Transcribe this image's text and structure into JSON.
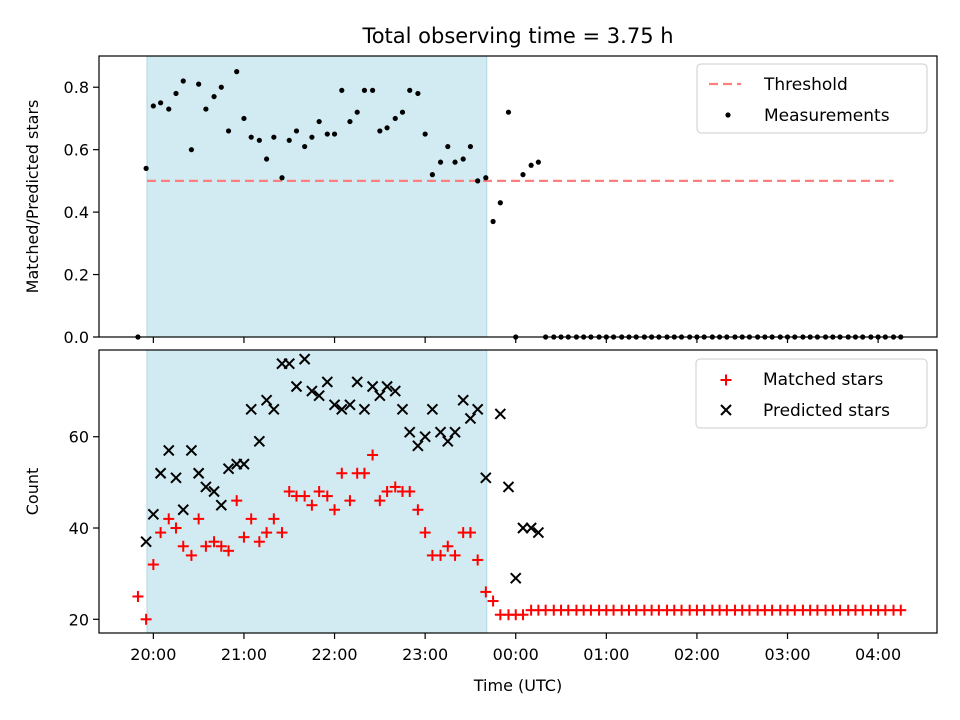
{
  "title": "Total observing time = 3.75 h",
  "xlabel": "Time (UTC)",
  "x_tick_labels": [
    "20:00",
    "21:00",
    "22:00",
    "23:00",
    "00:00",
    "01:00",
    "02:00",
    "03:00",
    "04:00"
  ],
  "colors": {
    "shade": "#add8e6",
    "threshold": "#ff7f7f",
    "measurements": "#000000",
    "matched": "#ff0000",
    "predicted": "#000000"
  },
  "chart_data": [
    {
      "type": "scatter",
      "panel": "top",
      "ylabel": "Matched/Predicted stars",
      "xlim": [
        19.4,
        28.65
      ],
      "ylim": [
        0,
        0.9
      ],
      "y_ticks": [
        0.0,
        0.2,
        0.4,
        0.6,
        0.8
      ],
      "y_tick_labels": [
        "0.0",
        "0.2",
        "0.4",
        "0.6",
        "0.8"
      ],
      "shaded_span": [
        19.93,
        23.68
      ],
      "legend_position": "top-right",
      "legend": [
        "Threshold",
        "Measurements"
      ],
      "threshold": {
        "name": "Threshold",
        "y": 0.5,
        "x_range": [
          19.93,
          28.17
        ],
        "style": "dashed"
      },
      "series": [
        {
          "name": "Measurements",
          "marker": "dot",
          "x": [
            19.83,
            19.92,
            20.0,
            20.08,
            20.17,
            20.25,
            20.33,
            20.42,
            20.5,
            20.58,
            20.67,
            20.75,
            20.83,
            20.92,
            21.0,
            21.08,
            21.17,
            21.25,
            21.33,
            21.42,
            21.5,
            21.58,
            21.67,
            21.75,
            21.83,
            21.92,
            22.0,
            22.08,
            22.17,
            22.25,
            22.33,
            22.42,
            22.5,
            22.58,
            22.67,
            22.75,
            22.83,
            22.92,
            23.0,
            23.08,
            23.17,
            23.25,
            23.33,
            23.42,
            23.5,
            23.58,
            23.67,
            23.75,
            23.83,
            23.92,
            24.0,
            24.08,
            24.17,
            24.25,
            24.33,
            24.42,
            24.5,
            24.58,
            24.67,
            24.75,
            24.83,
            24.92,
            25.0,
            25.08,
            25.17,
            25.25,
            25.33,
            25.42,
            25.5,
            25.58,
            25.67,
            25.75,
            25.83,
            25.92,
            26.0,
            26.08,
            26.17,
            26.25,
            26.33,
            26.42,
            26.5,
            26.58,
            26.67,
            26.75,
            26.83,
            26.92,
            27.0,
            27.08,
            27.17,
            27.25,
            27.33,
            27.42,
            27.5,
            27.58,
            27.67,
            27.75,
            27.83,
            27.92,
            28.0,
            28.08,
            28.17,
            28.25
          ],
          "y": [
            0.0,
            0.54,
            0.74,
            0.75,
            0.73,
            0.78,
            0.82,
            0.6,
            0.81,
            0.73,
            0.77,
            0.8,
            0.66,
            0.85,
            0.7,
            0.64,
            0.63,
            0.57,
            0.64,
            0.51,
            0.63,
            0.66,
            0.61,
            0.64,
            0.69,
            0.65,
            0.65,
            0.79,
            0.69,
            0.72,
            0.79,
            0.79,
            0.66,
            0.67,
            0.7,
            0.72,
            0.79,
            0.78,
            0.65,
            0.52,
            0.56,
            0.61,
            0.56,
            0.57,
            0.61,
            0.5,
            0.51,
            0.37,
            0.43,
            0.72,
            0.0,
            0.52,
            0.55,
            0.56,
            0.0,
            0.0,
            0.0,
            0.0,
            0.0,
            0.0,
            0.0,
            0.0,
            0.0,
            0.0,
            0.0,
            0.0,
            0.0,
            0.0,
            0.0,
            0.0,
            0.0,
            0.0,
            0.0,
            0.0,
            0.0,
            0.0,
            0.0,
            0.0,
            0.0,
            0.0,
            0.0,
            0.0,
            0.0,
            0.0,
            0.0,
            0.0,
            0.0,
            0.0,
            0.0,
            0.0,
            0.0,
            0.0,
            0.0,
            0.0,
            0.0,
            0.0,
            0.0,
            0.0,
            0.0,
            0.0,
            0.0,
            0.0
          ]
        }
      ]
    },
    {
      "type": "scatter",
      "panel": "bottom",
      "ylabel": "Count",
      "xlim": [
        19.4,
        28.65
      ],
      "ylim": [
        17,
        79
      ],
      "y_ticks": [
        20,
        40,
        60
      ],
      "y_tick_labels": [
        "20",
        "40",
        "60"
      ],
      "shaded_span": [
        19.93,
        23.68
      ],
      "legend_position": "top-right",
      "legend": [
        "Matched stars",
        "Predicted stars"
      ],
      "series": [
        {
          "name": "Matched stars",
          "marker": "plus",
          "x": [
            19.83,
            19.92,
            20.0,
            20.08,
            20.17,
            20.25,
            20.33,
            20.42,
            20.5,
            20.58,
            20.67,
            20.75,
            20.83,
            20.92,
            21.0,
            21.08,
            21.17,
            21.25,
            21.33,
            21.42,
            21.5,
            21.58,
            21.67,
            21.75,
            21.83,
            21.92,
            22.0,
            22.08,
            22.17,
            22.25,
            22.33,
            22.42,
            22.5,
            22.58,
            22.67,
            22.75,
            22.83,
            22.92,
            23.0,
            23.08,
            23.17,
            23.25,
            23.33,
            23.42,
            23.5,
            23.58,
            23.67,
            23.75,
            23.83,
            23.92,
            24.0,
            24.08,
            24.17,
            24.25,
            24.33,
            24.42,
            24.5,
            24.58,
            24.67,
            24.75,
            24.83,
            24.92,
            25.0,
            25.08,
            25.17,
            25.25,
            25.33,
            25.42,
            25.5,
            25.58,
            25.67,
            25.75,
            25.83,
            25.92,
            26.0,
            26.08,
            26.17,
            26.25,
            26.33,
            26.42,
            26.5,
            26.58,
            26.67,
            26.75,
            26.83,
            26.92,
            27.0,
            27.08,
            27.17,
            27.25,
            27.33,
            27.42,
            27.5,
            27.58,
            27.67,
            27.75,
            27.83,
            27.92,
            28.0,
            28.08,
            28.17,
            28.25
          ],
          "y": [
            25,
            20,
            32,
            39,
            42,
            40,
            36,
            34,
            42,
            36,
            37,
            36,
            35,
            46,
            38,
            42,
            37,
            39,
            42,
            39,
            48,
            47,
            47,
            45,
            48,
            47,
            44,
            52,
            46,
            52,
            52,
            56,
            46,
            48,
            49,
            48,
            48,
            44,
            39,
            34,
            34,
            36,
            34,
            39,
            39,
            33,
            26,
            24,
            21,
            21,
            21,
            21,
            22,
            22,
            22,
            22,
            22,
            22,
            22,
            22,
            22,
            22,
            22,
            22,
            22,
            22,
            22,
            22,
            22,
            22,
            22,
            22,
            22,
            22,
            22,
            22,
            22,
            22,
            22,
            22,
            22,
            22,
            22,
            22,
            22,
            22,
            22,
            22,
            22,
            22,
            22,
            22,
            22,
            22,
            22,
            22,
            22,
            22,
            22,
            22,
            22,
            22
          ]
        },
        {
          "name": "Predicted stars",
          "marker": "x",
          "x": [
            19.92,
            20.0,
            20.08,
            20.17,
            20.25,
            20.33,
            20.42,
            20.5,
            20.58,
            20.67,
            20.75,
            20.83,
            20.92,
            21.0,
            21.08,
            21.17,
            21.25,
            21.33,
            21.42,
            21.5,
            21.58,
            21.67,
            21.75,
            21.83,
            21.92,
            22.0,
            22.08,
            22.17,
            22.25,
            22.33,
            22.42,
            22.5,
            22.58,
            22.67,
            22.75,
            22.83,
            22.92,
            23.0,
            23.08,
            23.17,
            23.25,
            23.33,
            23.42,
            23.5,
            23.58,
            23.67,
            23.83,
            23.92,
            24.0,
            24.08,
            24.17,
            24.25
          ],
          "y": [
            37,
            43,
            52,
            57,
            51,
            44,
            57,
            52,
            49,
            48,
            45,
            53,
            54,
            54,
            66,
            59,
            68,
            66,
            76,
            76,
            71,
            77,
            70,
            69,
            72,
            67,
            66,
            67,
            72,
            66,
            71,
            69,
            71,
            70,
            66,
            61,
            58,
            60,
            66,
            61,
            59,
            61,
            68,
            64,
            66,
            51,
            65,
            49,
            29,
            40,
            40,
            39
          ]
        }
      ]
    }
  ]
}
